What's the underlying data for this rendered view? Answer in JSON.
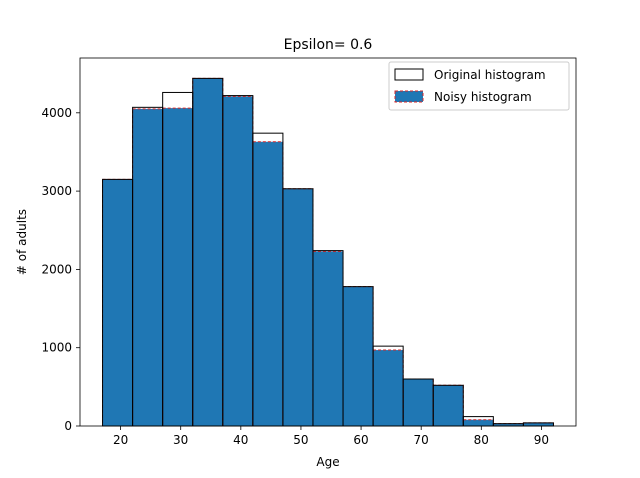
{
  "chart_data": {
    "type": "bar",
    "title": "Epsilon= 0.6",
    "xlabel": "Age",
    "ylabel": "# of adults",
    "xlim": [
      13.25,
      95.75
    ],
    "ylim": [
      0,
      4700
    ],
    "xticks": [
      20,
      30,
      40,
      50,
      60,
      70,
      80,
      90
    ],
    "yticks": [
      0,
      1000,
      2000,
      3000,
      4000
    ],
    "grid": false,
    "legend_position": "top-right",
    "bin_edges": [
      17,
      22,
      27,
      32,
      37,
      42,
      47,
      52,
      57,
      62,
      67,
      72,
      77,
      82,
      87,
      92
    ],
    "series": [
      {
        "name": "Original histogram",
        "style": "outline",
        "values": [
          3150,
          4070,
          4260,
          4440,
          4220,
          3740,
          3030,
          2240,
          1780,
          1020,
          600,
          520,
          120,
          30,
          40
        ],
        "edge_color": "#000000"
      },
      {
        "name": "Noisy histogram",
        "style": "filled",
        "values": [
          3150,
          4050,
          4060,
          4440,
          4210,
          3630,
          3030,
          2230,
          1780,
          970,
          600,
          520,
          80,
          30,
          40
        ],
        "fill_color": "#1f77b4",
        "edge_color": "#d62728"
      }
    ]
  }
}
